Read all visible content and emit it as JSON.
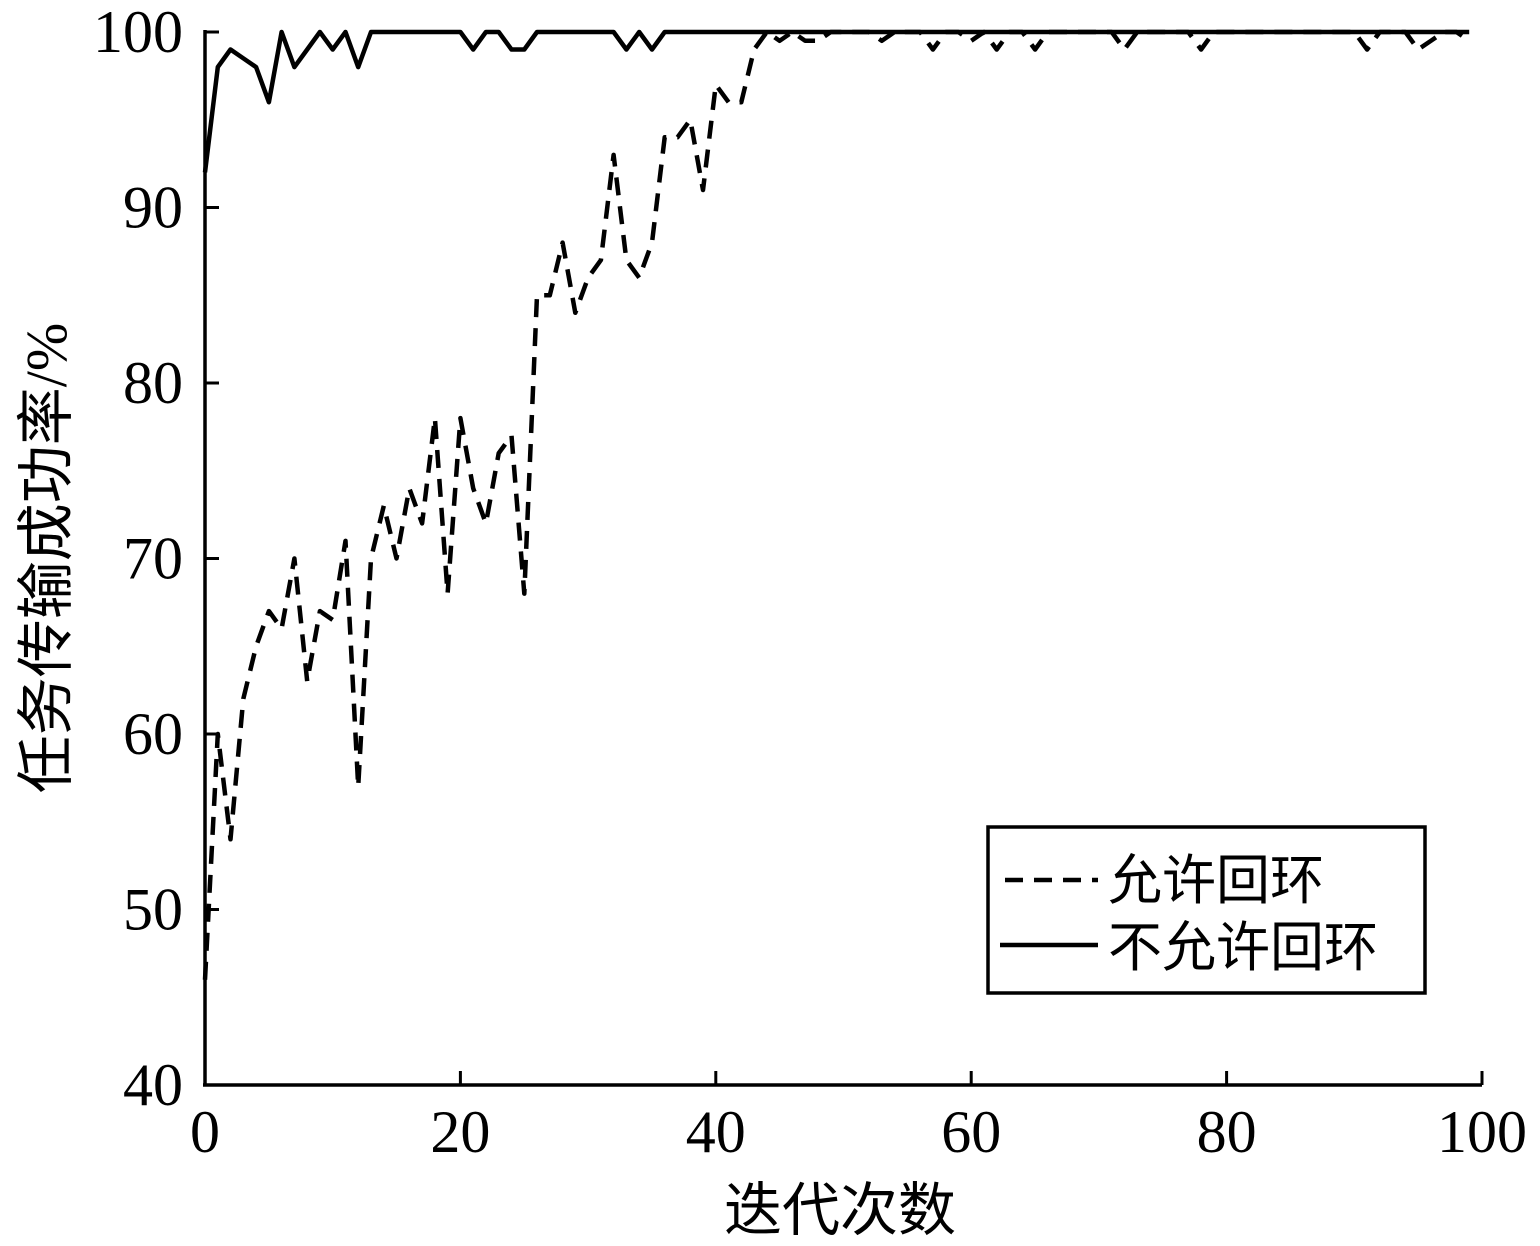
{
  "chart_data": {
    "type": "line",
    "xlabel": "迭代次数",
    "ylabel": "任务传输成功率/%",
    "xlim": [
      0,
      100
    ],
    "ylim": [
      40,
      100
    ],
    "xticks": [
      0,
      20,
      40,
      60,
      80,
      100
    ],
    "yticks": [
      40,
      50,
      60,
      70,
      80,
      90,
      100
    ],
    "grid": false,
    "legend": "bottom-right",
    "x": [
      0,
      1,
      2,
      3,
      4,
      5,
      6,
      7,
      8,
      9,
      10,
      11,
      12,
      13,
      14,
      15,
      16,
      17,
      18,
      19,
      20,
      21,
      22,
      23,
      24,
      25,
      26,
      27,
      28,
      29,
      30,
      31,
      32,
      33,
      34,
      35,
      36,
      37,
      38,
      39,
      40,
      41,
      42,
      43,
      44,
      45,
      46,
      47,
      48,
      49,
      50,
      51,
      52,
      53,
      54,
      55,
      56,
      57,
      58,
      59,
      60,
      61,
      62,
      63,
      64,
      65,
      66,
      67,
      68,
      69,
      70,
      71,
      72,
      73,
      74,
      75,
      76,
      77,
      78,
      79,
      80,
      81,
      82,
      83,
      84,
      85,
      86,
      87,
      88,
      89,
      90,
      91,
      92,
      93,
      94,
      95,
      96,
      97,
      98,
      99
    ],
    "series": [
      {
        "name": "允许回环",
        "style": "dashed",
        "color": "#000000",
        "values": [
          46,
          60,
          54,
          62,
          65,
          67,
          66,
          70,
          63,
          67,
          66.5,
          71,
          57,
          70,
          73,
          70,
          74,
          72,
          78,
          68,
          78,
          74,
          72,
          76,
          77,
          68,
          85,
          85,
          88,
          84,
          86,
          87,
          93,
          87,
          86,
          88,
          94,
          94,
          95,
          91,
          97,
          96,
          96,
          99,
          100,
          99.5,
          100,
          99.5,
          99.5,
          100,
          100,
          100,
          100,
          99.5,
          100,
          100,
          100,
          99,
          100,
          100,
          99.5,
          100,
          99,
          100,
          100,
          99,
          100,
          100,
          100,
          100,
          100,
          100,
          99,
          100,
          100,
          100,
          100,
          100,
          99,
          100,
          100,
          100,
          100,
          100,
          100,
          100,
          100,
          100,
          100,
          100,
          100,
          99,
          100,
          100,
          100,
          99,
          99.5,
          100,
          100,
          99.5
        ]
      },
      {
        "name": "不允许回环",
        "style": "solid",
        "color": "#000000",
        "values": [
          92,
          98,
          99,
          98.5,
          98,
          96,
          100,
          98,
          99,
          100,
          99,
          100,
          98,
          100,
          100,
          100,
          100,
          100,
          100,
          100,
          100,
          99,
          100,
          100,
          99,
          99,
          100,
          100,
          100,
          100,
          100,
          100,
          100,
          99,
          100,
          99,
          100,
          100,
          100,
          100,
          100,
          100,
          100,
          100,
          100,
          100,
          100,
          100,
          100,
          100,
          100,
          100,
          100,
          100,
          100,
          100,
          100,
          100,
          100,
          100,
          100,
          100,
          100,
          100,
          100,
          100,
          100,
          100,
          100,
          100,
          100,
          100,
          100,
          100,
          100,
          100,
          100,
          100,
          100,
          100,
          100,
          100,
          100,
          100,
          100,
          100,
          100,
          100,
          100,
          100,
          100,
          100,
          100,
          100,
          100,
          100,
          100,
          100,
          100,
          100
        ]
      }
    ]
  }
}
